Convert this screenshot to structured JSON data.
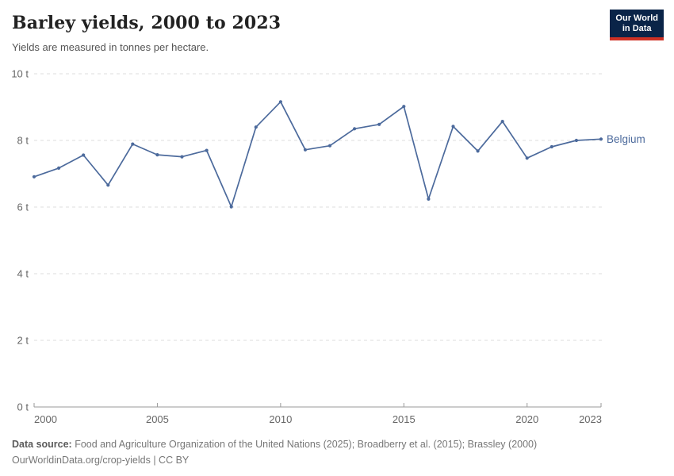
{
  "header": {
    "title": "Barley yields, 2000 to 2023",
    "subtitle": "Yields are measured in tonnes per hectare."
  },
  "logo": {
    "line1": "Our World",
    "line2": "in Data",
    "bg_color": "#0A2448",
    "accent_color": "#CE3125"
  },
  "footer": {
    "source_label": "Data source:",
    "source_text": " Food and Agriculture Organization of the United Nations (2025); Broadberry et al. (2015); Brassley (2000)",
    "link": "OurWorldinData.org/crop-yields",
    "license": " | CC BY"
  },
  "chart_data": {
    "type": "line",
    "title": "Barley yields, 2000 to 2023",
    "subtitle": "Yields are measured in tonnes per hectare.",
    "xlabel": "",
    "ylabel": "",
    "unit": "t",
    "xlim": [
      2000,
      2023
    ],
    "ylim": [
      0,
      10
    ],
    "grid": "horizontal-dashed",
    "legend_position": "end-of-line-label",
    "x": [
      2000,
      2001,
      2002,
      2003,
      2004,
      2005,
      2006,
      2007,
      2008,
      2009,
      2010,
      2011,
      2012,
      2013,
      2014,
      2015,
      2016,
      2017,
      2018,
      2019,
      2020,
      2021,
      2022,
      2023
    ],
    "series": [
      {
        "name": "Belgium",
        "color": "#4C6A9C",
        "values": [
          6.91,
          7.17,
          7.56,
          6.66,
          7.89,
          7.57,
          7.51,
          7.7,
          6.01,
          8.4,
          9.16,
          7.72,
          7.84,
          8.35,
          8.48,
          9.02,
          6.24,
          8.42,
          7.68,
          8.57,
          7.47,
          7.81,
          8.0,
          8.04
        ]
      }
    ],
    "y_ticks": [
      {
        "value": 0,
        "label": "0 t"
      },
      {
        "value": 2,
        "label": "2 t"
      },
      {
        "value": 4,
        "label": "4 t"
      },
      {
        "value": 6,
        "label": "6 t"
      },
      {
        "value": 8,
        "label": "8 t"
      },
      {
        "value": 10,
        "label": "10 t"
      }
    ],
    "x_ticks": [
      {
        "value": 2000,
        "label": "2000"
      },
      {
        "value": 2005,
        "label": "2005"
      },
      {
        "value": 2010,
        "label": "2010"
      },
      {
        "value": 2015,
        "label": "2015"
      },
      {
        "value": 2020,
        "label": "2020"
      },
      {
        "value": 2023,
        "label": "2023"
      }
    ]
  }
}
